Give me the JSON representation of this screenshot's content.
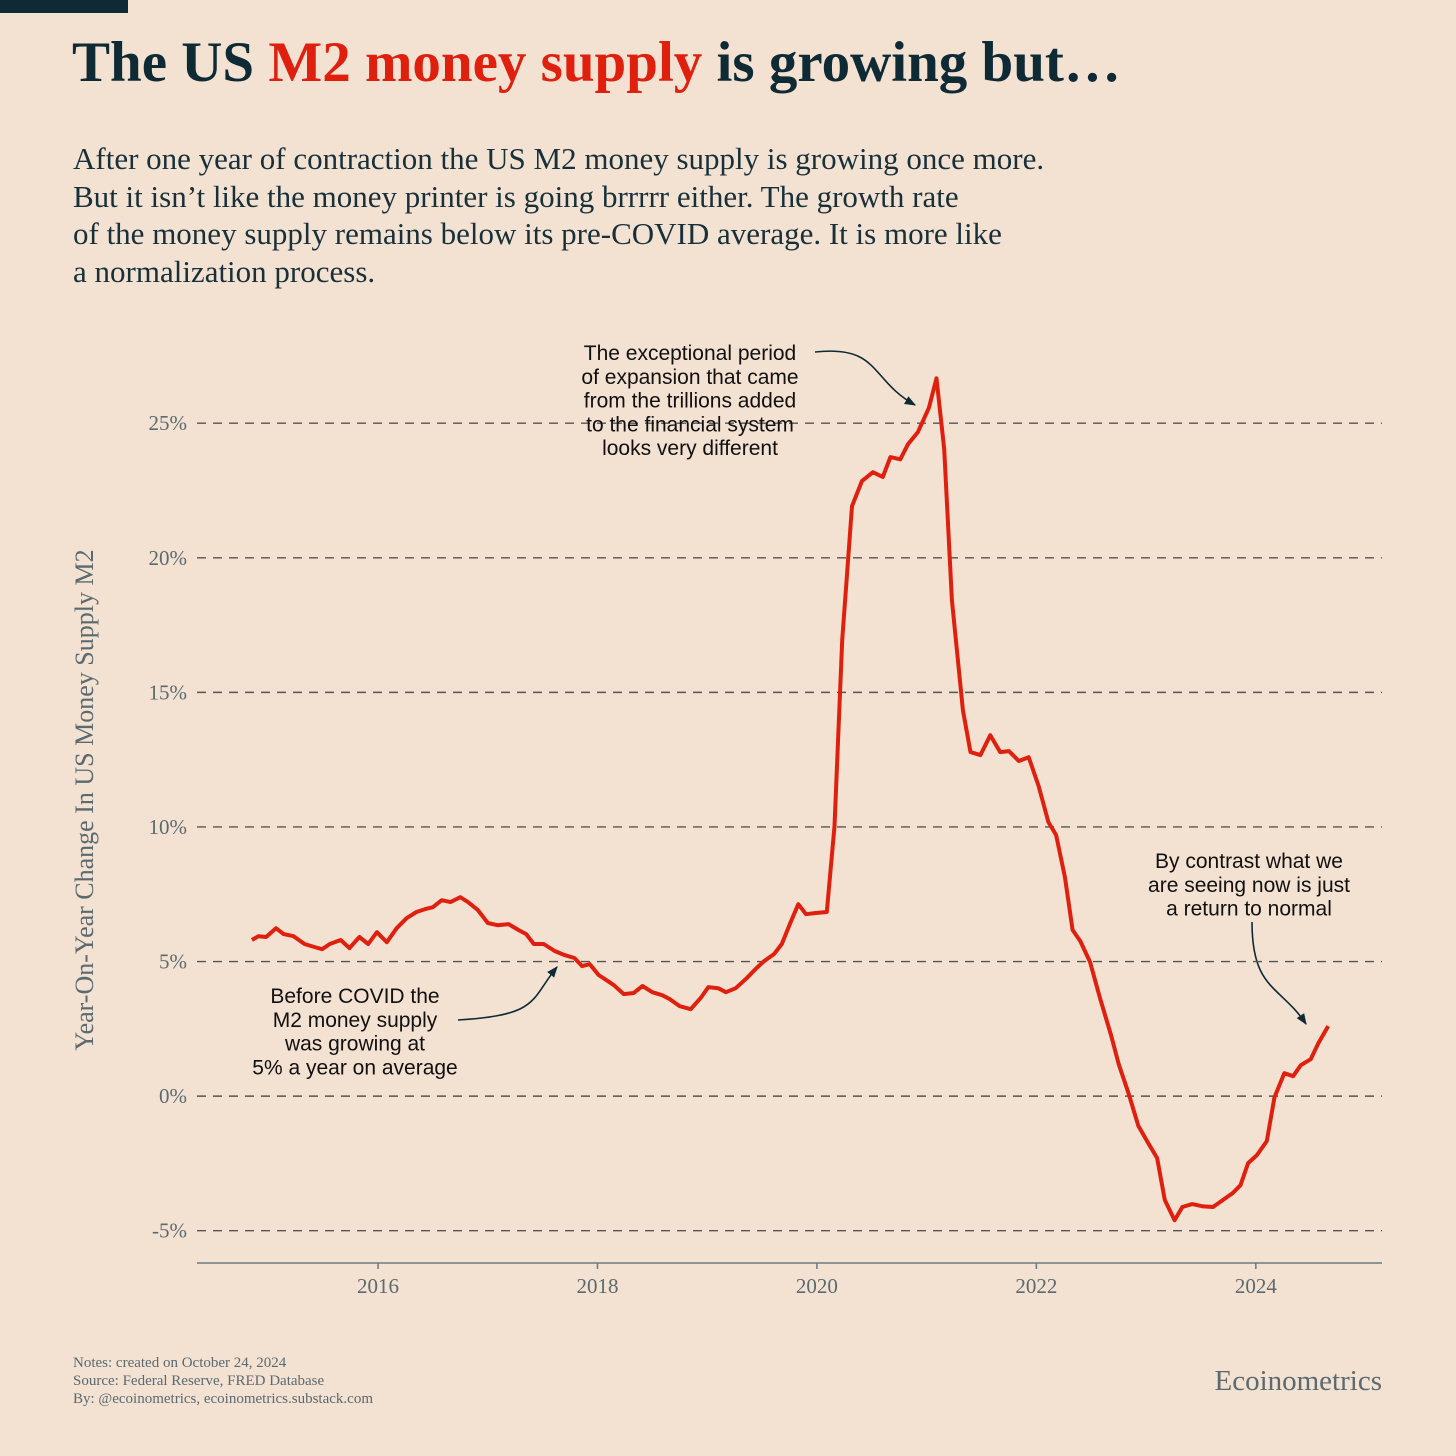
{
  "chart_data": {
    "type": "line",
    "title": [
      "The US ",
      "M2 money supply",
      " is growing but…"
    ],
    "subtitle": [
      "After one year of contraction the US M2 money supply is growing once more.",
      "But it isn’t like the money printer is going brrrrr either. The growth rate",
      "of the money supply remains below its pre-COVID average. It is more like",
      "a normalization process."
    ],
    "y_label": "Year-On-Year Change In US Money Supply M2",
    "annotations": [
      [
        "The exceptional period",
        "of expansion that came",
        "from the trillions added",
        "to the financial system",
        "looks very different"
      ],
      [
        "Before COVID the",
        "M2 money supply",
        "was growing at",
        "5% a year on average"
      ],
      [
        "By contrast what we",
        "are seeing now is just",
        "a return to normal"
      ]
    ],
    "notes": [
      "Notes: created on October 24, 2024",
      "Source: Federal Reserve, FRED Database",
      "By: @ecoinometrics, ecoinometrics.substack.com"
    ],
    "brand": "Ecoinometrics",
    "xlim": [
      2014.35,
      2025.15
    ],
    "xticks": [
      2016,
      2018,
      2020,
      2022,
      2024
    ],
    "ylim": [
      -6.2,
      27.2
    ],
    "yticks": [
      {
        "value": -5,
        "label": "-5%"
      },
      {
        "value": 0,
        "label": "0%"
      },
      {
        "value": 5,
        "label": "5%"
      },
      {
        "value": 10,
        "label": "10%"
      },
      {
        "value": 15,
        "label": "15%"
      },
      {
        "value": 20,
        "label": "20%"
      },
      {
        "value": 25,
        "label": "25%"
      }
    ],
    "grid": true,
    "x": [
      2014.85,
      2014.91,
      2014.98,
      2015.07,
      2015.14,
      2015.23,
      2015.33,
      2015.42,
      2015.49,
      2015.56,
      2015.66,
      2015.74,
      2015.83,
      2015.91,
      2015.99,
      2016.08,
      2016.17,
      2016.26,
      2016.35,
      2016.43,
      2016.5,
      2016.58,
      2016.66,
      2016.75,
      2016.82,
      2016.91,
      2017.0,
      2017.09,
      2017.19,
      2017.28,
      2017.35,
      2017.42,
      2017.51,
      2017.61,
      2017.7,
      2017.79,
      2017.86,
      2017.93,
      2018.01,
      2018.08,
      2018.15,
      2018.24,
      2018.33,
      2018.41,
      2018.5,
      2018.59,
      2018.66,
      2018.75,
      2018.85,
      2018.94,
      2019.01,
      2019.1,
      2019.17,
      2019.26,
      2019.36,
      2019.45,
      2019.52,
      2019.61,
      2019.68,
      2019.76,
      2019.83,
      2019.9,
      2019.98,
      2020.09,
      2020.16,
      2020.23,
      2020.32,
      2020.41,
      2020.51,
      2020.6,
      2020.67,
      2020.76,
      2020.83,
      2020.92,
      2021.02,
      2021.09,
      2021.16,
      2021.23,
      2021.33,
      2021.4,
      2021.49,
      2021.58,
      2021.67,
      2021.75,
      2021.84,
      2021.93,
      2022.02,
      2022.11,
      2022.18,
      2022.26,
      2022.33,
      2022.4,
      2022.49,
      2022.58,
      2022.68,
      2022.75,
      2022.84,
      2022.93,
      2023.02,
      2023.1,
      2023.17,
      2023.26,
      2023.33,
      2023.42,
      2023.51,
      2023.61,
      2023.7,
      2023.79,
      2023.86,
      2023.93,
      2024.01,
      2024.1,
      2024.17,
      2024.26,
      2024.34,
      2024.41,
      2024.5,
      2024.57,
      2024.66
    ],
    "series": [
      {
        "color": "#e0200f",
        "values": [
          5.8,
          5.94,
          5.91,
          6.24,
          6.02,
          5.94,
          5.65,
          5.54,
          5.46,
          5.65,
          5.8,
          5.5,
          5.91,
          5.65,
          6.09,
          5.72,
          6.24,
          6.61,
          6.84,
          6.95,
          7.02,
          7.28,
          7.21,
          7.39,
          7.21,
          6.91,
          6.43,
          6.35,
          6.39,
          6.17,
          6.02,
          5.65,
          5.65,
          5.39,
          5.24,
          5.13,
          4.83,
          4.9,
          4.5,
          4.31,
          4.12,
          3.79,
          3.83,
          4.09,
          3.86,
          3.75,
          3.6,
          3.34,
          3.23,
          3.64,
          4.05,
          4.01,
          3.86,
          4.01,
          4.38,
          4.76,
          5.02,
          5.28,
          5.65,
          6.46,
          7.13,
          6.76,
          6.8,
          6.84,
          10.03,
          16.94,
          21.92,
          22.85,
          23.18,
          23.0,
          23.74,
          23.66,
          24.22,
          24.67,
          25.56,
          26.67,
          24.04,
          18.43,
          14.34,
          12.78,
          12.67,
          13.41,
          12.78,
          12.82,
          12.45,
          12.59,
          11.52,
          10.18,
          9.7,
          8.14,
          6.17,
          5.76,
          4.98,
          3.64,
          2.27,
          1.19,
          0.11,
          -1.11,
          -1.75,
          -2.3,
          -3.86,
          -4.61,
          -4.12,
          -4.01,
          -4.09,
          -4.12,
          -3.86,
          -3.6,
          -3.31,
          -2.49,
          -2.19,
          -1.67,
          -0.04,
          0.85,
          0.74,
          1.15,
          1.37,
          1.97,
          2.6
        ]
      }
    ]
  }
}
